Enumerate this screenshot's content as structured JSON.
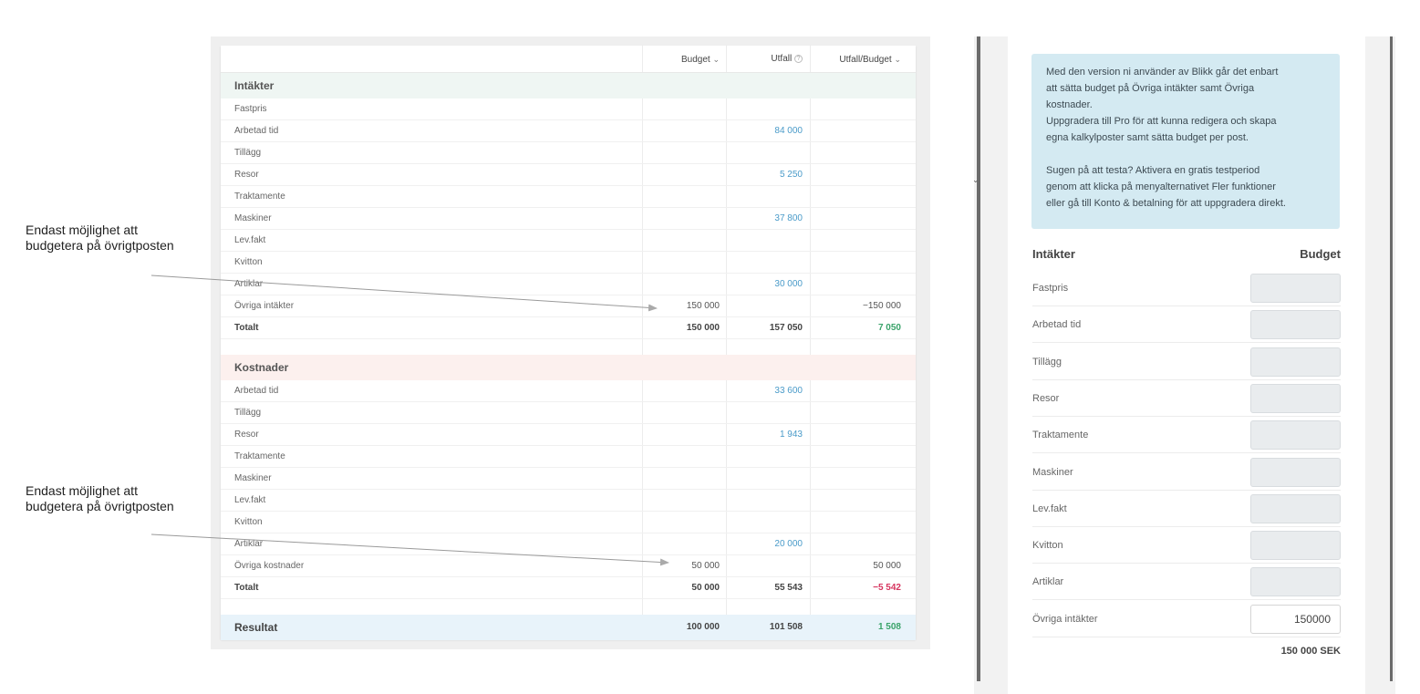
{
  "annotations": [
    {
      "line1": "Endast möjlighet att",
      "line2": "budgetera på övrigtposten"
    },
    {
      "line1": "Endast möjlighet att",
      "line2": "budgetera på övrigtposten"
    }
  ],
  "table": {
    "headers": {
      "budget": "Budget",
      "utfall": "Utfall",
      "utfall_budget": "Utfall/Budget"
    },
    "income": {
      "title": "Intäkter",
      "rows": [
        {
          "label": "Fastpris",
          "budget": "",
          "utfall": "",
          "ratio": ""
        },
        {
          "label": "Arbetad tid",
          "budget": "",
          "utfall": "84 000",
          "ratio": ""
        },
        {
          "label": "Tillägg",
          "budget": "",
          "utfall": "",
          "ratio": ""
        },
        {
          "label": "Resor",
          "budget": "",
          "utfall": "5 250",
          "ratio": ""
        },
        {
          "label": "Traktamente",
          "budget": "",
          "utfall": "",
          "ratio": ""
        },
        {
          "label": "Maskiner",
          "budget": "",
          "utfall": "37 800",
          "ratio": ""
        },
        {
          "label": "Lev.fakt",
          "budget": "",
          "utfall": "",
          "ratio": ""
        },
        {
          "label": "Kvitton",
          "budget": "",
          "utfall": "",
          "ratio": ""
        },
        {
          "label": "Artiklar",
          "budget": "",
          "utfall": "30 000",
          "ratio": ""
        },
        {
          "label": "Övriga intäkter",
          "budget": "150 000",
          "utfall": "",
          "ratio": "−150 000"
        }
      ],
      "total": {
        "label": "Totalt",
        "budget": "150 000",
        "utfall": "157 050",
        "ratio": "7 050"
      }
    },
    "costs": {
      "title": "Kostnader",
      "rows": [
        {
          "label": "Arbetad tid",
          "budget": "",
          "utfall": "33 600",
          "ratio": ""
        },
        {
          "label": "Tillägg",
          "budget": "",
          "utfall": "",
          "ratio": ""
        },
        {
          "label": "Resor",
          "budget": "",
          "utfall": "1 943",
          "ratio": ""
        },
        {
          "label": "Traktamente",
          "budget": "",
          "utfall": "",
          "ratio": ""
        },
        {
          "label": "Maskiner",
          "budget": "",
          "utfall": "",
          "ratio": ""
        },
        {
          "label": "Lev.fakt",
          "budget": "",
          "utfall": "",
          "ratio": ""
        },
        {
          "label": "Kvitton",
          "budget": "",
          "utfall": "",
          "ratio": ""
        },
        {
          "label": "Artiklar",
          "budget": "",
          "utfall": "20 000",
          "ratio": ""
        },
        {
          "label": "Övriga kostnader",
          "budget": "50 000",
          "utfall": "",
          "ratio": "50 000"
        }
      ],
      "total": {
        "label": "Totalt",
        "budget": "50 000",
        "utfall": "55 543",
        "ratio": "−5 542"
      }
    },
    "result": {
      "label": "Resultat",
      "budget": "100 000",
      "utfall": "101 508",
      "ratio": "1 508"
    }
  },
  "info": {
    "paragraph1": [
      "Med den version ni använder av Blikk går det enbart",
      "att sätta budget på Övriga intäkter samt Övriga",
      "kostnader.",
      "Uppgradera till Pro för att kunna redigera och skapa",
      "egna kalkylposter samt sätta budget per post."
    ],
    "paragraph2": [
      "Sugen på att testa? Aktivera en gratis testperiod",
      "genom att klicka på menyalternativet Fler funktioner",
      "eller gå till Konto & betalning för att uppgradera direkt."
    ]
  },
  "form": {
    "heading": "Intäkter",
    "budget_heading": "Budget",
    "rows": [
      {
        "label": "Fastpris",
        "value": ""
      },
      {
        "label": "Arbetad tid",
        "value": ""
      },
      {
        "label": "Tillägg",
        "value": ""
      },
      {
        "label": "Resor",
        "value": ""
      },
      {
        "label": "Traktamente",
        "value": ""
      },
      {
        "label": "Maskiner",
        "value": ""
      },
      {
        "label": "Lev.fakt",
        "value": ""
      },
      {
        "label": "Kvitton",
        "value": ""
      },
      {
        "label": "Artiklar",
        "value": ""
      },
      {
        "label": "Övriga intäkter",
        "value": "150000"
      }
    ],
    "sum": "150 000 SEK"
  },
  "colors": {
    "blue": "#4a9bc9",
    "green": "#3aa36a",
    "red": "#d6355f",
    "info_bg": "#d4eaf2"
  }
}
